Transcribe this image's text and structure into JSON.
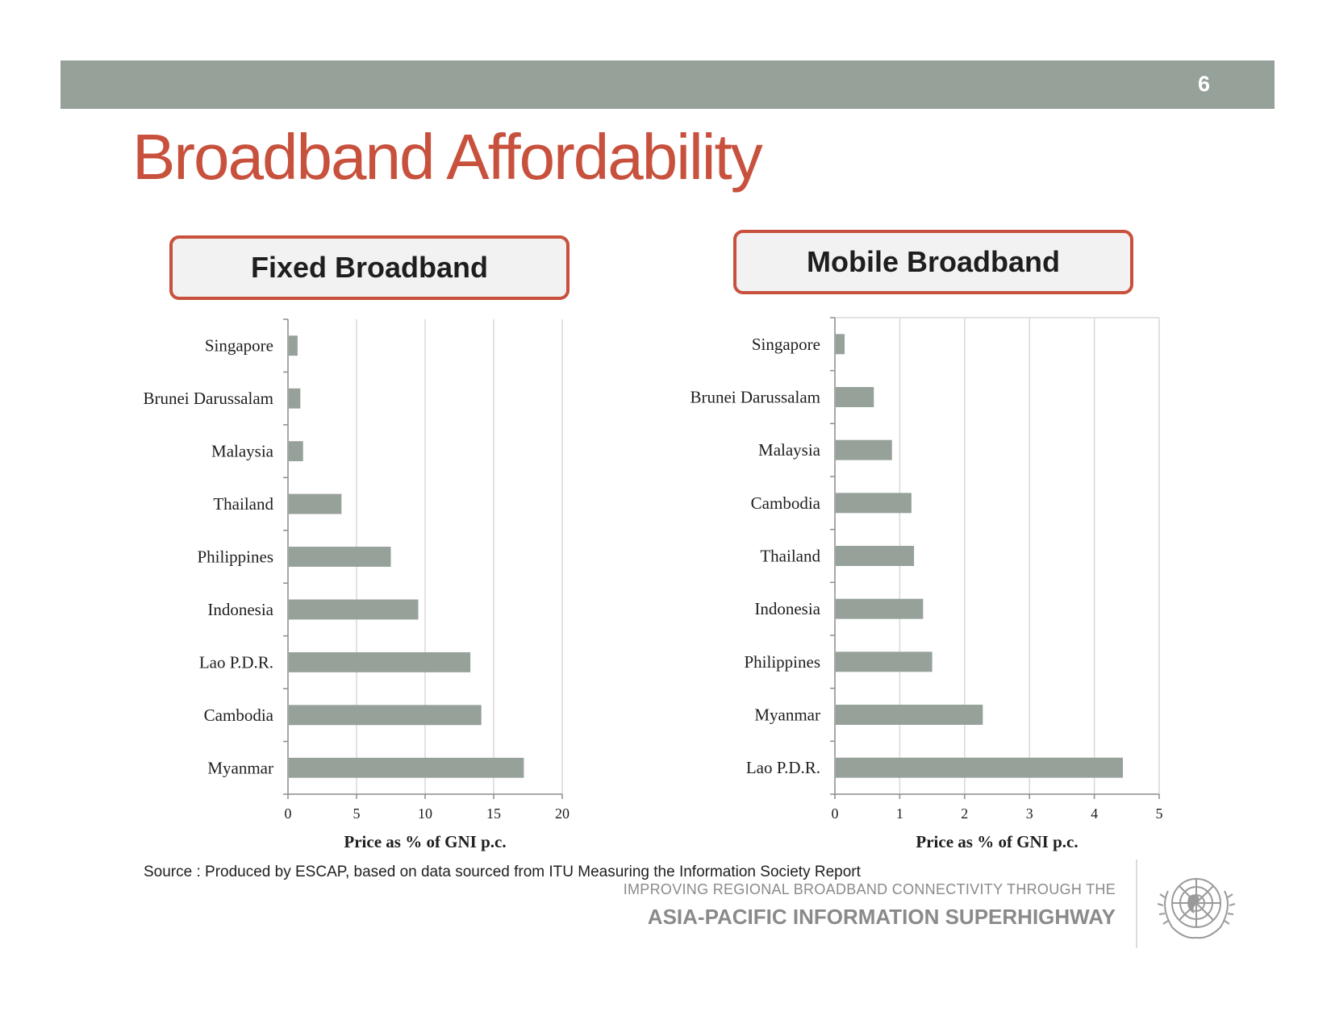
{
  "slide": {
    "page_number": "6",
    "title": "Broadband Affordability",
    "source": "Source : Produced by ESCAP, based on data sourced from ITU Measuring the Information Society Report",
    "footer_line1": "IMPROVING REGIONAL BROADBAND CONNECTIVITY THROUGH THE",
    "footer_line2": "ASIA-PACIFIC INFORMATION SUPERHIGHWAY",
    "emblem": "un-emblem-icon"
  },
  "colors": {
    "bar": "#95a199",
    "accent": "#c8513d",
    "header_bar": "#95a199"
  },
  "chart_data": [
    {
      "type": "bar",
      "orientation": "horizontal",
      "title": "Fixed Broadband",
      "categories": [
        "Singapore",
        "Brunei Darussalam",
        "Malaysia",
        "Thailand",
        "Philippines",
        "Indonesia",
        "Lao P.D.R.",
        "Cambodia",
        "Myanmar"
      ],
      "values": [
        0.7,
        0.9,
        1.1,
        3.9,
        7.5,
        9.5,
        13.3,
        14.1,
        17.2
      ],
      "xlabel": "Price as % of GNI p.c.",
      "ylabel": "",
      "xlim": [
        0,
        20
      ],
      "xticks": [
        "0",
        "5",
        "10",
        "15",
        "20"
      ],
      "grid": true
    },
    {
      "type": "bar",
      "orientation": "horizontal",
      "title": "Mobile Broadband",
      "categories": [
        "Singapore",
        "Brunei Darussalam",
        "Malaysia",
        "Cambodia",
        "Thailand",
        "Indonesia",
        "Philippines",
        "Myanmar",
        "Lao P.D.R."
      ],
      "values": [
        0.15,
        0.6,
        0.88,
        1.18,
        1.22,
        1.36,
        1.5,
        2.28,
        4.44
      ],
      "xlabel": "Price as % of GNI p.c.",
      "ylabel": "",
      "xlim": [
        0,
        5
      ],
      "xticks": [
        "0",
        "1",
        "2",
        "3",
        "4",
        "5"
      ],
      "grid": true
    }
  ]
}
